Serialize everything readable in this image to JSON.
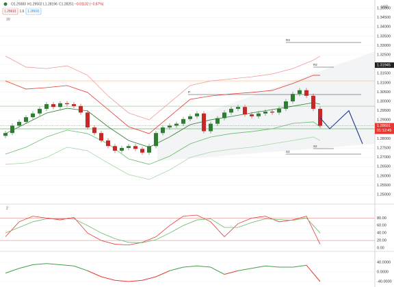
{
  "header": {
    "ohlc": [
      "O1.29383",
      "H1.29502",
      "L1.28196",
      "C1.28251",
      "−0.01132 (−0.87%)"
    ],
    "buttons": [
      "1.28691",
      "1.6",
      "1.28691"
    ],
    "indicators_count": "10",
    "currency": "USD",
    "pane_label": "2"
  },
  "chart_data": [
    {
      "type": "candlestick",
      "open": [
        1.2815,
        1.283,
        1.287,
        1.289,
        1.2915,
        1.2935,
        1.296,
        1.2985,
        1.297,
        1.299,
        1.2985,
        1.2975,
        1.294,
        1.286,
        1.283,
        1.279,
        1.276,
        1.2735,
        1.275,
        1.276,
        1.2745,
        1.2725,
        1.276,
        1.283,
        1.286,
        1.287,
        1.288,
        1.2905,
        1.292,
        1.2935,
        1.284,
        1.288,
        1.291,
        1.294,
        1.296,
        1.297,
        1.293,
        1.292,
        1.2935,
        1.2945,
        1.294,
        1.296,
        1.3,
        1.304,
        1.306,
        1.303,
        1.296
      ],
      "high": [
        1.2842,
        1.2882,
        1.2902,
        1.2927,
        1.2947,
        1.2972,
        1.2997,
        1.2997,
        1.3002,
        1.3002,
        1.2997,
        1.2987,
        1.2952,
        1.2872,
        1.2842,
        1.2802,
        1.2772,
        1.2762,
        1.2772,
        1.2772,
        1.2757,
        1.2772,
        1.2842,
        1.2872,
        1.2882,
        1.2892,
        1.2917,
        1.2932,
        1.2947,
        1.2947,
        1.2892,
        1.2922,
        1.2952,
        1.2972,
        1.2982,
        1.2982,
        1.2942,
        1.2947,
        1.2957,
        1.2957,
        1.2972,
        1.3012,
        1.3052,
        1.3072,
        1.3072,
        1.3042,
        1.2972
      ],
      "low": [
        1.2803,
        1.2818,
        1.2858,
        1.2878,
        1.2903,
        1.2923,
        1.2948,
        1.2958,
        1.2958,
        1.2973,
        1.2963,
        1.2928,
        1.2848,
        1.2818,
        1.2778,
        1.2748,
        1.2723,
        1.2723,
        1.2738,
        1.2733,
        1.2713,
        1.2713,
        1.2748,
        1.2818,
        1.2848,
        1.2858,
        1.2868,
        1.2893,
        1.2908,
        1.2828,
        1.2828,
        1.2868,
        1.2898,
        1.2928,
        1.2948,
        1.2918,
        1.2908,
        1.2908,
        1.2923,
        1.2928,
        1.2928,
        1.2948,
        1.2988,
        1.3028,
        1.3018,
        1.2948,
        1.2857
      ],
      "close": [
        1.283,
        1.287,
        1.289,
        1.2915,
        1.2935,
        1.296,
        1.2985,
        1.297,
        1.299,
        1.2985,
        1.2975,
        1.294,
        1.286,
        1.283,
        1.279,
        1.276,
        1.2735,
        1.275,
        1.276,
        1.2745,
        1.2725,
        1.276,
        1.283,
        1.286,
        1.287,
        1.288,
        1.2905,
        1.292,
        1.2935,
        1.284,
        1.288,
        1.291,
        1.294,
        1.296,
        1.297,
        1.293,
        1.292,
        1.2935,
        1.2945,
        1.294,
        1.296,
        1.3,
        1.304,
        1.306,
        1.303,
        1.296,
        1.2869
      ],
      "up_color": "#2e7d32",
      "down_color": "#c62828",
      "series": [
        {
          "color": "#ef9a9a",
          "x": [
            0,
            3,
            6,
            9,
            12,
            15,
            18,
            21,
            24,
            27,
            30,
            33,
            36,
            39,
            42,
            45,
            46
          ],
          "values": [
            1.3243,
            1.3184,
            1.3176,
            1.3191,
            1.314,
            1.3029,
            1.2938,
            1.2901,
            1.2993,
            1.3085,
            1.311,
            1.3121,
            1.3132,
            1.3147,
            1.3176,
            1.3221,
            1.3243
          ]
        },
        {
          "color": "#e53935",
          "x": [
            0,
            3,
            6,
            9,
            12,
            15,
            18,
            21,
            24,
            27,
            30,
            33,
            36,
            39,
            42,
            45,
            46
          ],
          "values": [
            1.311,
            1.3066,
            1.3074,
            1.3085,
            1.3048,
            1.2956,
            1.2864,
            1.2827,
            1.2919,
            1.3011,
            1.3029,
            1.304,
            1.3048,
            1.3059,
            1.3096,
            1.314,
            1.314
          ]
        },
        {
          "color": "#2e7d32",
          "x": [
            0,
            3,
            6,
            9,
            12,
            15,
            18,
            21,
            24,
            27,
            30,
            33,
            36,
            39,
            42,
            45,
            46
          ],
          "values": [
            1.2827,
            1.2882,
            1.2937,
            1.2963,
            1.2949,
            1.2864,
            1.279,
            1.2754,
            1.2809,
            1.2875,
            1.2901,
            1.2919,
            1.2938,
            1.2956,
            1.2974,
            1.2993,
            1.2985
          ]
        },
        {
          "color": "#66bb6a",
          "x": [
            0,
            3,
            6,
            9,
            12,
            15,
            18,
            21,
            24,
            27,
            30,
            33,
            36,
            39,
            42,
            45,
            46
          ],
          "values": [
            1.2717,
            1.2754,
            1.2809,
            1.2846,
            1.2827,
            1.2772,
            1.2691,
            1.2662,
            1.2706,
            1.2772,
            1.2809,
            1.2827,
            1.2838,
            1.2853,
            1.2882,
            1.289,
            1.2864
          ]
        },
        {
          "color": "#a5d6a7",
          "x": [
            0,
            3,
            6,
            9,
            12,
            15,
            18,
            21,
            24,
            27,
            30,
            33,
            36,
            39,
            42,
            45,
            46
          ],
          "values": [
            1.2662,
            1.2669,
            1.2699,
            1.2754,
            1.2735,
            1.2669,
            1.2607,
            1.2581,
            1.2632,
            1.2699,
            1.2728,
            1.2743,
            1.2754,
            1.2772,
            1.279,
            1.2809,
            1.279
          ]
        }
      ],
      "levels": [
        {
          "label": "R3",
          "value": 1.33162,
          "x": [
            41,
            52
          ]
        },
        {
          "label": "R2",
          "value": 1.31838,
          "x": [
            45,
            48
          ]
        },
        {
          "label": "P",
          "value": 1.30368,
          "x": [
            26.7,
            52
          ]
        },
        {
          "label": "S2",
          "value": 1.27463,
          "x": [
            45,
            48
          ]
        },
        {
          "label": "S3",
          "value": 1.27169,
          "x": [
            41,
            52
          ]
        }
      ],
      "lines": [
        {
          "value": 1.311,
          "color": "#f5b97a"
        },
        {
          "value": 1.2974,
          "color": "#81c784"
        },
        {
          "value": 1.2853,
          "color": "#66bb6a"
        }
      ],
      "projection": {
        "color": "#1a3a8a",
        "x": [
          46,
          47.4,
          50.2,
          52.2
        ],
        "values": [
          1.2912,
          1.2853,
          1.295,
          1.2772
        ]
      },
      "last_price": 1.28691,
      "last_price_color": "#e53935",
      "countdown": "01:12:45",
      "level_tag": 1.31945,
      "ylim": [
        1.24522,
        1.35368
      ],
      "yticks": [
        {
          "value": 1.35,
          "label": "1.35000"
        },
        {
          "value": 1.345,
          "label": "1.34500"
        },
        {
          "value": 1.34,
          "label": "1.34000"
        },
        {
          "value": 1.335,
          "label": "1.33500"
        },
        {
          "value": 1.33,
          "label": "1.33000"
        },
        {
          "value": 1.325,
          "label": "1.32500"
        },
        {
          "value": 1.32,
          "label": "1.32000"
        },
        {
          "value": 1.315,
          "label": "1.31500"
        },
        {
          "value": 1.31,
          "label": "1.31000"
        },
        {
          "value": 1.305,
          "label": "1.30500"
        },
        {
          "value": 1.3,
          "label": "1.30000"
        },
        {
          "value": 1.295,
          "label": "1.29500"
        },
        {
          "value": 1.29,
          "label": "1.29000"
        },
        {
          "value": 1.285,
          "label": "1.28500"
        },
        {
          "value": 1.28,
          "label": "1.28000"
        },
        {
          "value": 1.275,
          "label": "1.27500"
        },
        {
          "value": 1.27,
          "label": "1.27000"
        },
        {
          "value": 1.265,
          "label": "1.26500"
        },
        {
          "value": 1.26,
          "label": "1.26000"
        },
        {
          "value": 1.255,
          "label": "1.25500"
        },
        {
          "value": 1.25,
          "label": "1.25000"
        }
      ],
      "grid": true
    },
    {
      "type": "line",
      "series": [
        {
          "color": "#e53935",
          "x": [
            0,
            2,
            4,
            6,
            8,
            10,
            12,
            14,
            16,
            18,
            20,
            22,
            24,
            26,
            28,
            30,
            32,
            34,
            36,
            38,
            40,
            42,
            44,
            46
          ],
          "values": [
            30,
            70,
            85,
            80,
            75,
            82,
            40,
            20,
            10,
            8,
            15,
            30,
            60,
            85,
            88,
            70,
            30,
            65,
            80,
            85,
            70,
            75,
            85,
            10
          ]
        },
        {
          "color": "#66bb6a",
          "x": [
            0,
            2,
            4,
            6,
            8,
            10,
            12,
            14,
            16,
            18,
            20,
            22,
            24,
            26,
            28,
            30,
            32,
            34,
            36,
            38,
            40,
            42,
            44,
            46
          ],
          "values": [
            40,
            55,
            70,
            78,
            78,
            78,
            60,
            40,
            25,
            15,
            14,
            22,
            40,
            60,
            75,
            78,
            55,
            55,
            68,
            78,
            76,
            74,
            80,
            40
          ]
        }
      ],
      "levels": [
        80,
        20
      ],
      "level_color": "#e57373",
      "ylim": [
        -7.3,
        113.6
      ],
      "yticks": [
        {
          "value": 80,
          "label": "80.00"
        },
        {
          "value": 60,
          "label": "60.00"
        },
        {
          "value": 40,
          "label": "40.00"
        },
        {
          "value": 20,
          "label": "20.00"
        },
        {
          "value": 0,
          "label": "0.00"
        }
      ],
      "grid": true
    },
    {
      "type": "signed-line",
      "x": [
        0,
        2,
        4,
        6,
        8,
        10,
        12,
        14,
        16,
        18,
        20,
        22,
        24,
        26,
        28,
        30,
        32,
        34,
        36,
        38,
        40,
        42,
        44,
        46
      ],
      "values": [
        -5,
        15,
        30,
        35,
        30,
        25,
        5,
        -20,
        -35,
        -40,
        -35,
        -20,
        5,
        20,
        25,
        20,
        -10,
        5,
        15,
        25,
        20,
        20,
        28,
        -40
      ],
      "up_color": "#43a047",
      "down_color": "#e53935",
      "ylim": [
        -54.3,
        82.9
      ],
      "yticks": [
        {
          "value": 40,
          "label": "40.0000"
        },
        {
          "value": 0,
          "label": "0.0000"
        },
        {
          "value": -40,
          "label": "-40.0000"
        }
      ],
      "grid": true
    }
  ]
}
